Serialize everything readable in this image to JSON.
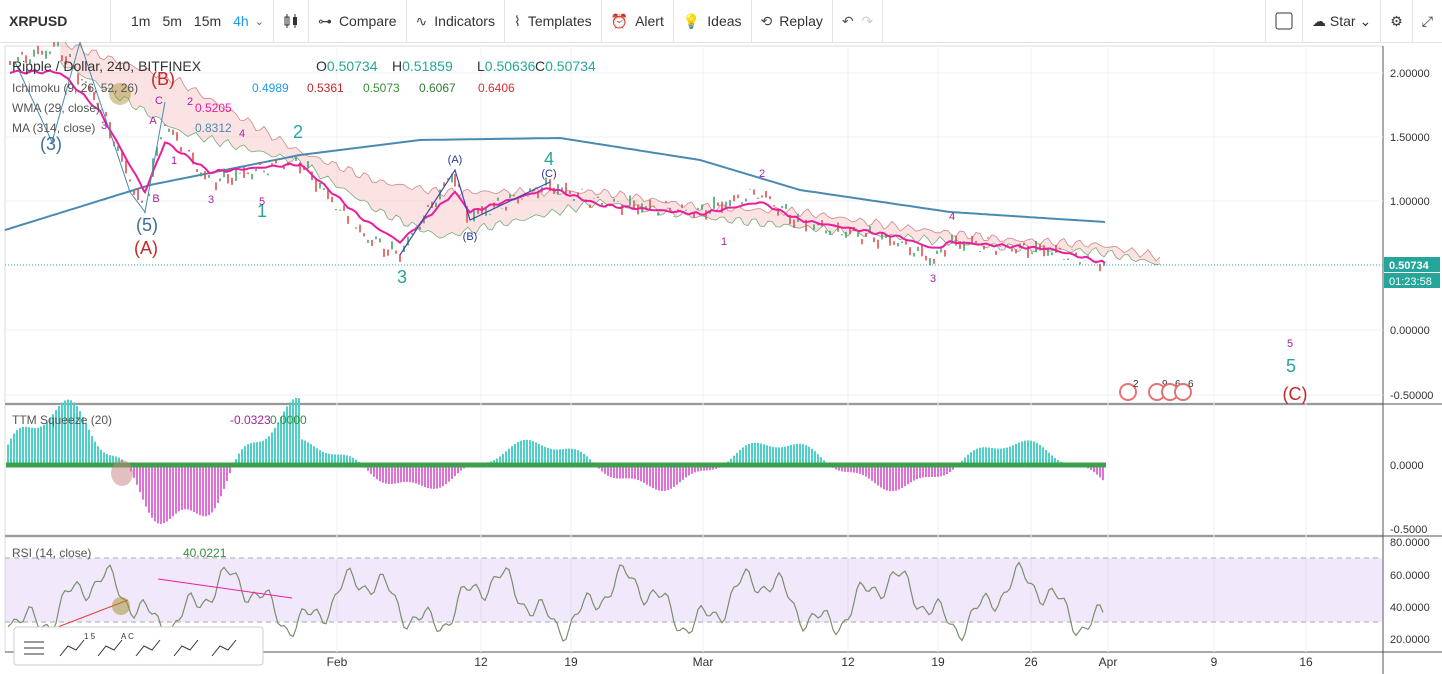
{
  "toolbar": {
    "symbol": "XRPUSD",
    "intervals": [
      "1m",
      "5m",
      "15m",
      "4h"
    ],
    "buttons": [
      "Compare",
      "Indicators",
      "Templates",
      "Alert",
      "Ideas",
      "Replay"
    ],
    "star": "Star"
  },
  "main_pane": {
    "title": "Ripple / Dollar, 240, BITFINEX",
    "ohlc": [
      {
        "key": "O",
        "value": "0.50734"
      },
      {
        "key": "H",
        "value": "0.51859"
      },
      {
        "key": "L",
        "value": "0.50636"
      },
      {
        "key": "C",
        "value": "0.50734"
      }
    ],
    "indicators": [
      {
        "name": "Ichimoku (9, 26, 52, 26)",
        "values": [
          {
            "text": "0.4989",
            "color": "#2196f3"
          },
          {
            "text": "0.5361",
            "color": "#c62828"
          },
          {
            "text": "0.5073",
            "color": "#388e3c"
          },
          {
            "text": "0.6067",
            "color": "#2e7d32"
          },
          {
            "text": "0.6406",
            "color": "#d32f2f"
          }
        ]
      },
      {
        "name": "WMA (29, close)",
        "values": [
          {
            "text": "0.5205",
            "color": "#e91e9e"
          }
        ]
      },
      {
        "name": "MA (314, close)",
        "values": [
          {
            "text": "0.8312",
            "color": "#4a8ab0"
          }
        ]
      }
    ],
    "price_axis": [
      "2.00000",
      "1.50000",
      "1.00000",
      "0.00000",
      "-0.50000"
    ],
    "last_price": "0.50734",
    "countdown": "01:23:58",
    "wave_labels": [
      {
        "text": "(3)",
        "color": "#3d6d99"
      },
      {
        "text": "(5)",
        "color": "#3d6d99"
      },
      {
        "text": "(A)",
        "color": "#c62828"
      },
      {
        "text": "(B)",
        "color": "#c62828"
      },
      {
        "text": "2",
        "color": "#26a69a"
      },
      {
        "text": "1",
        "color": "#26a69a"
      },
      {
        "text": "3",
        "color": "#26a69a"
      },
      {
        "text": "4",
        "color": "#26a69a"
      },
      {
        "text": "(A)",
        "color": "#283593"
      },
      {
        "text": "(B)",
        "color": "#283593"
      },
      {
        "text": "(C)",
        "color": "#283593"
      },
      {
        "text": "2",
        "color": "#ab1fa0"
      },
      {
        "text": "1",
        "color": "#ab1fa0"
      },
      {
        "text": "4",
        "color": "#ab1fa0"
      },
      {
        "text": "3",
        "color": "#ab1fa0"
      },
      {
        "text": "5",
        "color": "#ab1fa0"
      },
      {
        "text": "5",
        "color": "#26a69a"
      },
      {
        "text": "(C)",
        "color": "#c62828"
      },
      {
        "text": "3",
        "color": "#ab1fa0"
      },
      {
        "text": "1",
        "color": "#ab1fa0"
      },
      {
        "text": "3",
        "color": "#ab1fa0"
      },
      {
        "text": "5",
        "color": "#ab1fa0"
      },
      {
        "text": "4",
        "color": "#ab1fa0"
      },
      {
        "text": "2",
        "color": "#ab1fa0"
      },
      {
        "text": "B",
        "color": "#ab1fa0"
      },
      {
        "text": "C",
        "color": "#ab1fa0"
      },
      {
        "text": "A",
        "color": "#ab1fa0"
      }
    ],
    "events": [
      "2",
      "9",
      "6",
      "6"
    ]
  },
  "ttm_pane": {
    "name": "TTM Squeeze (20)",
    "values": [
      {
        "text": "-0.0323",
        "color": "#ab1fa0"
      },
      {
        "text": "0.0000",
        "color": "#388e3c"
      }
    ],
    "axis": [
      "0.0000",
      "-0.5000"
    ]
  },
  "rsi_pane": {
    "name": "RSI (14, close)",
    "value": "40.0221",
    "axis": [
      "80.0000",
      "60.0000",
      "40.0000",
      "20.0000"
    ]
  },
  "time_axis": [
    "Feb",
    "12",
    "19",
    "Mar",
    "12",
    "19",
    "26",
    "Apr",
    "9",
    "16"
  ],
  "drawing_tools": [
    "1 5",
    "A C"
  ]
}
